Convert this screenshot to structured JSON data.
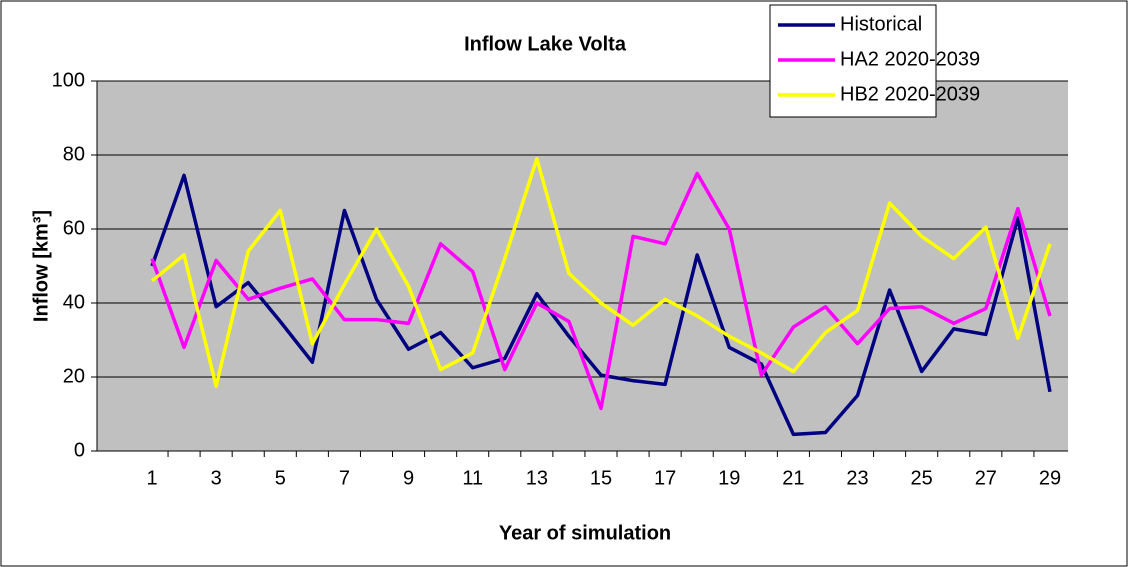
{
  "chart_data": {
    "type": "line",
    "title": "Inflow Lake Volta",
    "x_label": "Year of simulation",
    "y_label": "Inflow [km³]",
    "categories": [
      "1",
      null,
      "3",
      null,
      "5",
      null,
      "7",
      null,
      "9",
      null,
      "11",
      null,
      "13",
      null,
      "15",
      null,
      "17",
      null,
      "19",
      null,
      "21",
      null,
      "23",
      null,
      "25",
      null,
      "27",
      null,
      "29"
    ],
    "series": [
      {
        "name": "Historical",
        "color": "#000080",
        "values": [
          50,
          74.5,
          39,
          45.5,
          35,
          24,
          65,
          41,
          27.5,
          32,
          22.5,
          25,
          42.5,
          31,
          20.5,
          19,
          18,
          53,
          28,
          23.5,
          4.5,
          5,
          15,
          43.5,
          21.5,
          33,
          31.5,
          63,
          16
        ]
      },
      {
        "name": "HA2 2020-2039",
        "color": "#ff00ff",
        "values": [
          52,
          28,
          51.5,
          41,
          44,
          46.5,
          35.5,
          35.5,
          34.5,
          56,
          48.5,
          22,
          40,
          35,
          11.5,
          58,
          56,
          75,
          60,
          20.5,
          33.5,
          39,
          29,
          38.5,
          39,
          34.5,
          38.5,
          65.5,
          36.5
        ]
      },
      {
        "name": "HB2 2020-2039",
        "color": "#ffff00",
        "values": [
          46,
          53,
          17.5,
          54,
          65,
          29,
          45,
          60,
          44.5,
          22,
          26.5,
          52,
          79,
          48,
          40,
          34,
          41,
          36.5,
          31,
          26.5,
          21.5,
          32,
          38,
          67,
          58,
          52,
          60.5,
          30.5,
          56
        ]
      }
    ],
    "ylim": [
      0,
      100
    ],
    "yticks": [
      0,
      20,
      40,
      60,
      80,
      100
    ],
    "grid": true,
    "plot_background": "#c0c0c0",
    "legend_position": "top-right"
  }
}
